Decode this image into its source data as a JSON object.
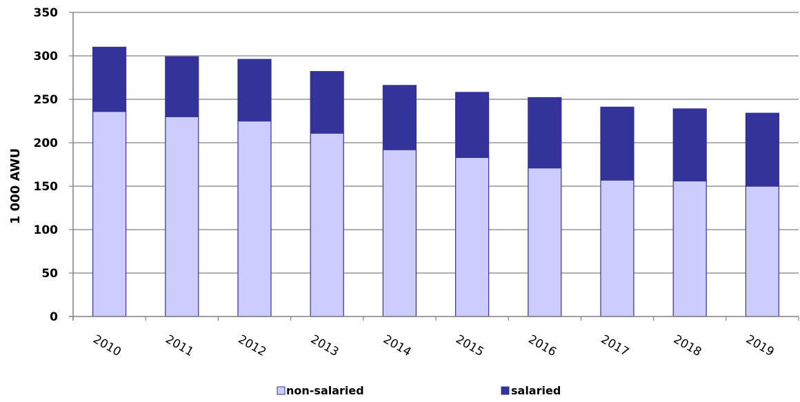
{
  "chart_data": {
    "type": "bar",
    "stacked": true,
    "categories": [
      "2010",
      "2011",
      "2012",
      "2013",
      "2014",
      "2015",
      "2016",
      "2017",
      "2018",
      "2019"
    ],
    "series": [
      {
        "name": "non-salaried",
        "color": "#ccccff",
        "values": [
          236,
          230,
          225,
          211,
          192,
          183,
          171,
          157,
          156,
          150
        ]
      },
      {
        "name": "salaried",
        "color": "#333399",
        "values": [
          74,
          69,
          71,
          71,
          74,
          75,
          81,
          84,
          83,
          84
        ]
      }
    ],
    "ylabel": "1 000 AWU",
    "xlabel": "",
    "ylim": [
      0,
      350
    ],
    "yticks": [
      "0",
      "50",
      "100",
      "150",
      "200",
      "250",
      "300",
      "350"
    ],
    "grid": true,
    "legend_position": "bottom"
  }
}
